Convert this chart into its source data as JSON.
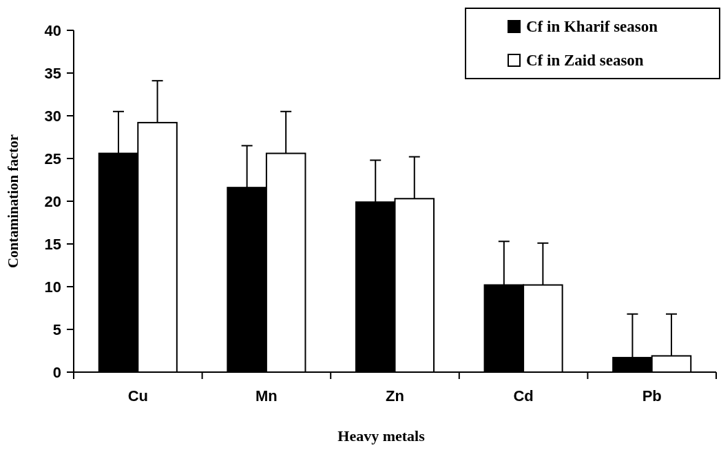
{
  "chart_data": {
    "type": "bar",
    "xlabel": "Heavy metals",
    "ylabel": "Contamination factor",
    "categories": [
      "Cu",
      "Mn",
      "Zn",
      "Cd",
      "Pb"
    ],
    "series": [
      {
        "name": "Cf in Kharif season",
        "color": "#000000",
        "values": [
          25.6,
          21.6,
          19.9,
          10.2,
          1.7
        ],
        "errors": [
          [
            25.6,
            30.5
          ],
          [
            21.6,
            26.5
          ],
          [
            19.9,
            24.8
          ],
          [
            10.2,
            15.3
          ],
          [
            1.7,
            6.8
          ]
        ]
      },
      {
        "name": "Cf in Zaid season",
        "color": "#ffffff",
        "values": [
          29.2,
          25.6,
          20.3,
          10.2,
          1.9
        ],
        "errors": [
          [
            29.2,
            34.1
          ],
          [
            25.6,
            30.5
          ],
          [
            20.3,
            25.2
          ],
          [
            10.2,
            15.1
          ],
          [
            1.9,
            6.8
          ]
        ]
      }
    ],
    "ylim": [
      0,
      40
    ],
    "yticks": [
      0,
      5,
      10,
      15,
      20,
      25,
      30,
      35,
      40
    ],
    "grid": false,
    "legend": "top right"
  }
}
